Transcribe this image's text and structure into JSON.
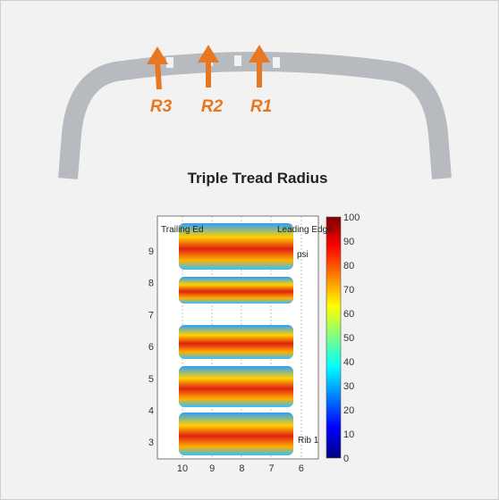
{
  "tire": {
    "labels": [
      "R3",
      "R2",
      "R1"
    ]
  },
  "title": "Triple Tread Radius",
  "plot": {
    "yticks": [
      "9",
      "8",
      "7",
      "6",
      "5",
      "4",
      "3"
    ],
    "xticks": [
      "10",
      "9",
      "8",
      "7",
      "6"
    ],
    "annotations": [
      "Trailing Ed",
      "Leading Edge",
      "psi",
      "Rib 1"
    ],
    "colorbar": [
      "100",
      "90",
      "80",
      "70",
      "60",
      "50",
      "40",
      "30",
      "20",
      "10",
      "0"
    ]
  }
}
